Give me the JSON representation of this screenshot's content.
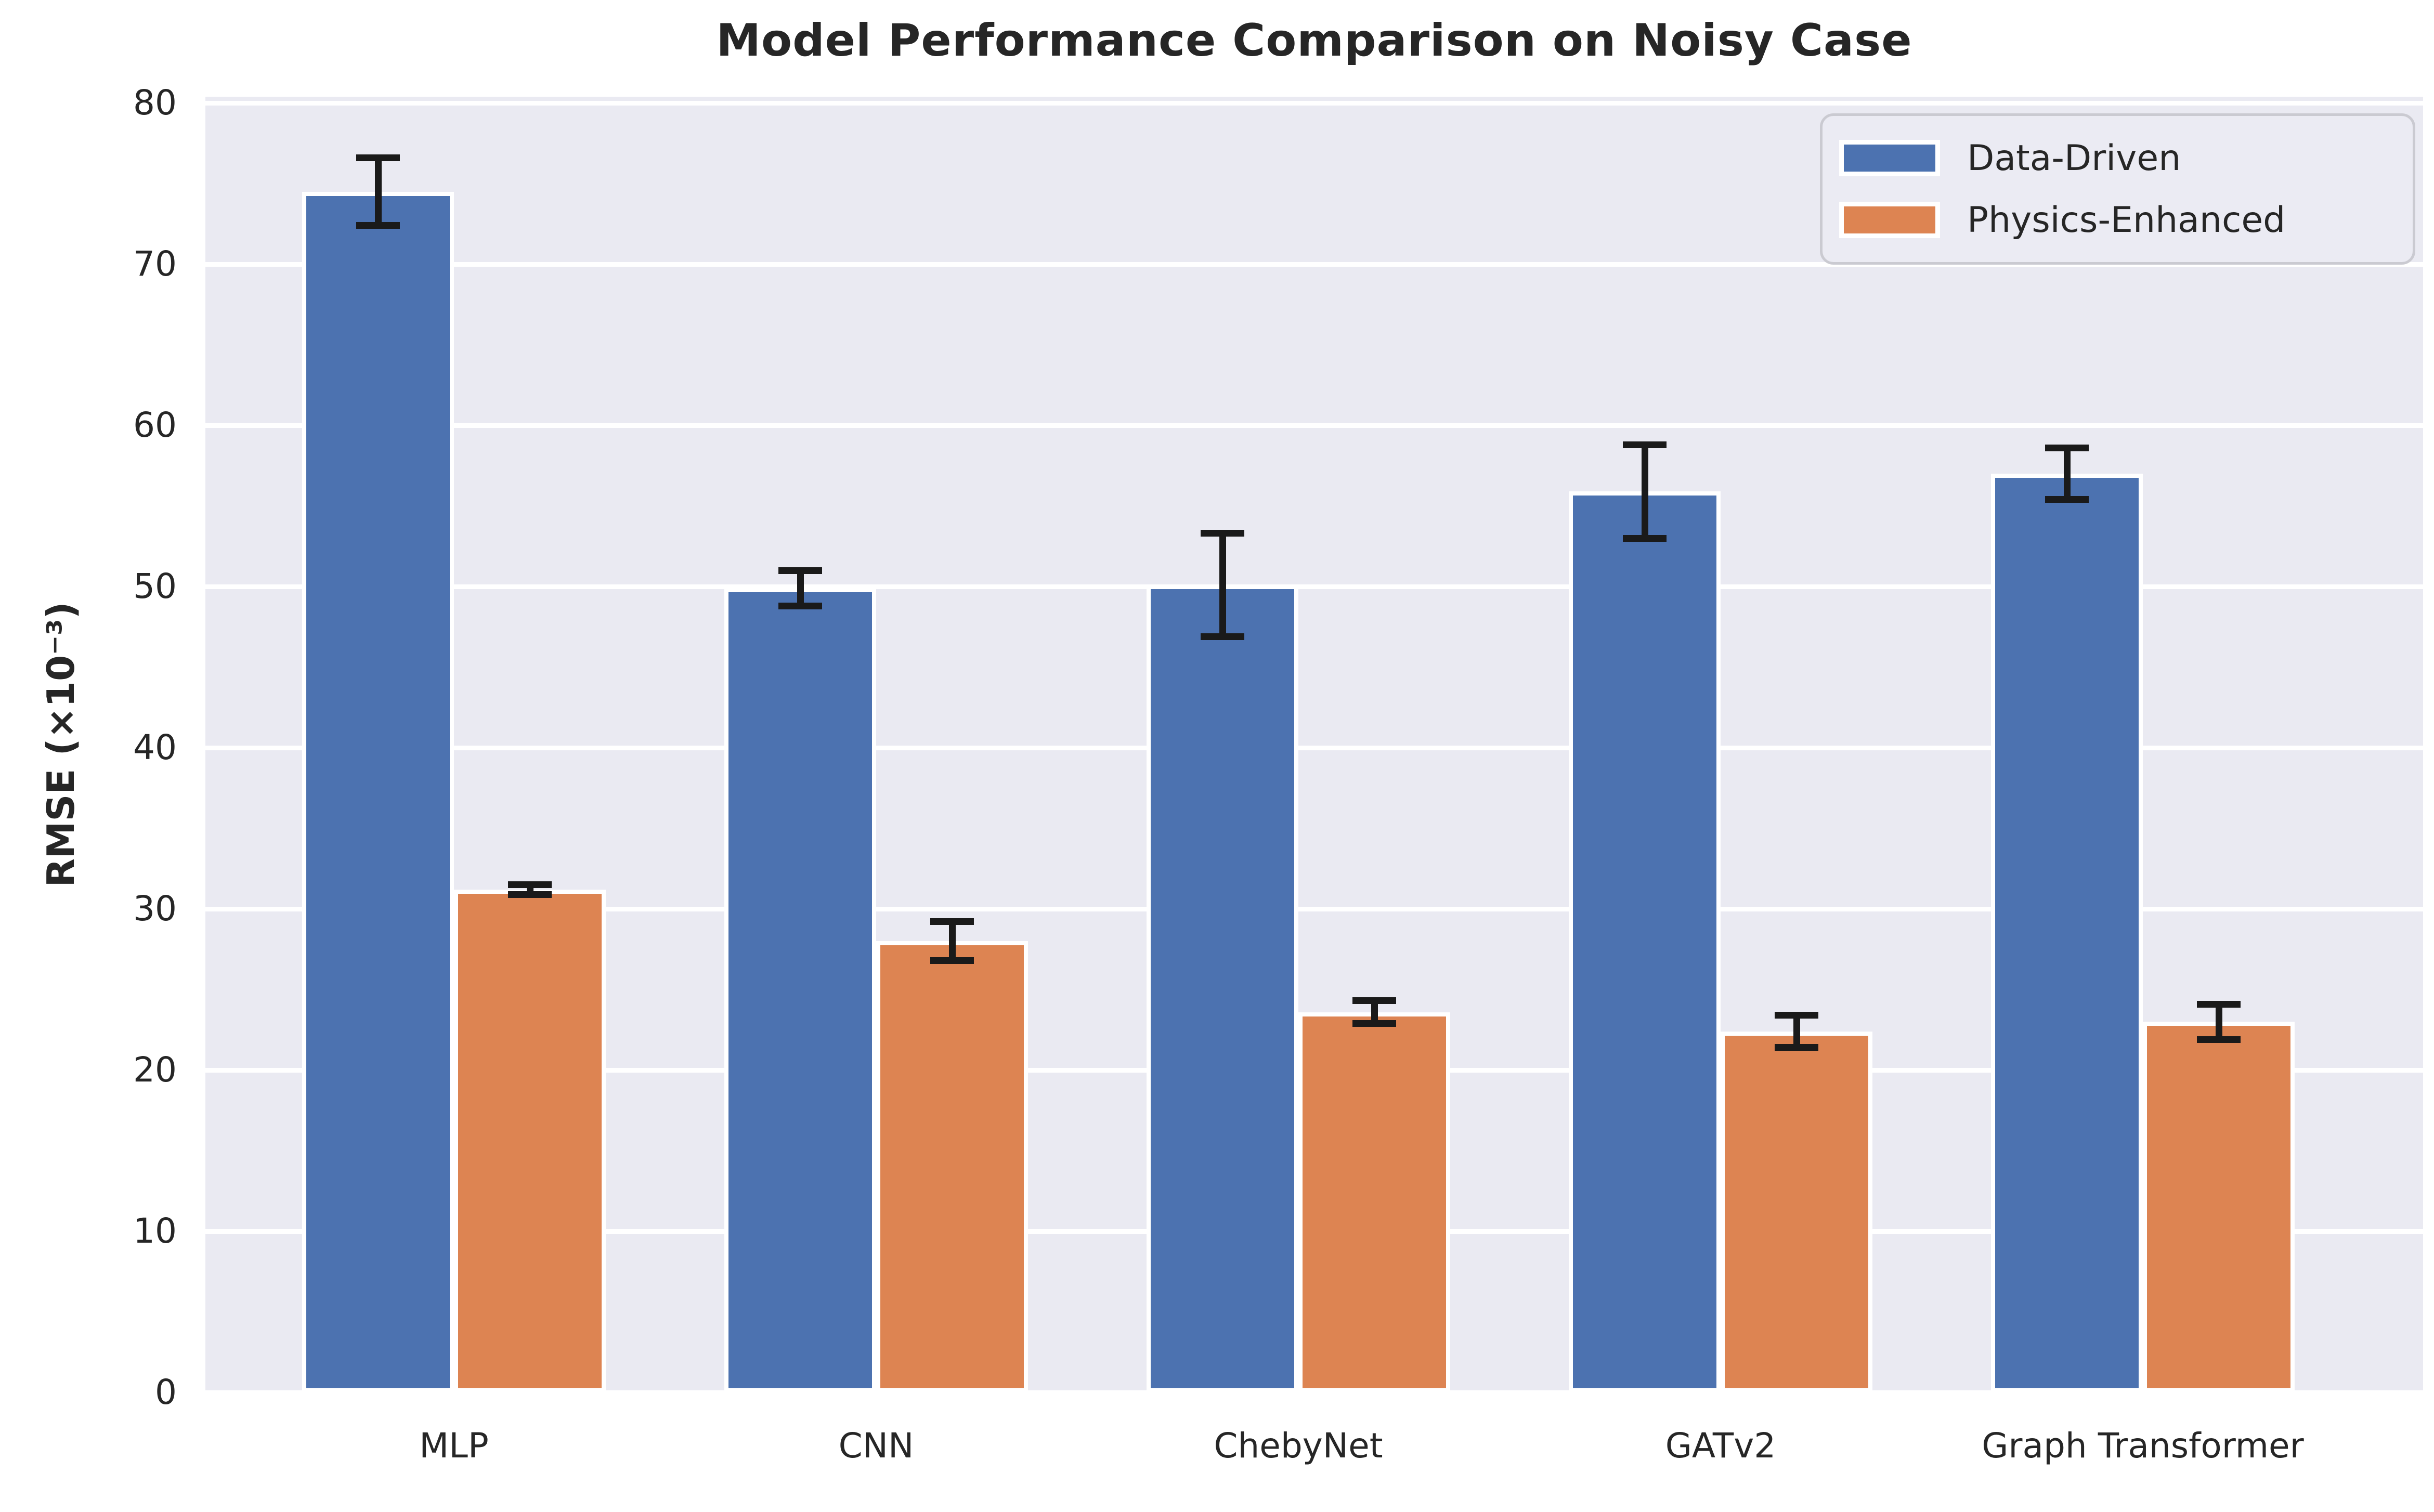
{
  "chart_data": {
    "type": "bar",
    "title": "Model Performance Comparison on Noisy Case",
    "ylabel": "RMSE (×10⁻³)",
    "xlabel": "",
    "categories": [
      "MLP",
      "CNN",
      "ChebyNet",
      "GATv2",
      "Graph Transformer"
    ],
    "series": [
      {
        "name": "Data-Driven",
        "color": "#4C72B0",
        "values": [
          74.5,
          49.9,
          50.1,
          55.9,
          57.0
        ],
        "errors": [
          2.1,
          1.1,
          3.2,
          2.9,
          1.6
        ]
      },
      {
        "name": "Physics-Enhanced",
        "color": "#DD8452",
        "values": [
          31.2,
          28.0,
          23.6,
          22.4,
          23.0
        ],
        "errors": [
          0.3,
          1.2,
          0.7,
          1.0,
          1.1
        ]
      }
    ],
    "ylim": [
      0,
      80.4
    ],
    "yticks": [
      0,
      10,
      20,
      30,
      40,
      50,
      60,
      70,
      80
    ],
    "grid": true,
    "legend_position": "upper right",
    "colors": {
      "plot_background": "#EAEAF2",
      "gridline": "#FFFFFF",
      "error_bar": "#1A1A1A",
      "text": "#262626"
    }
  }
}
